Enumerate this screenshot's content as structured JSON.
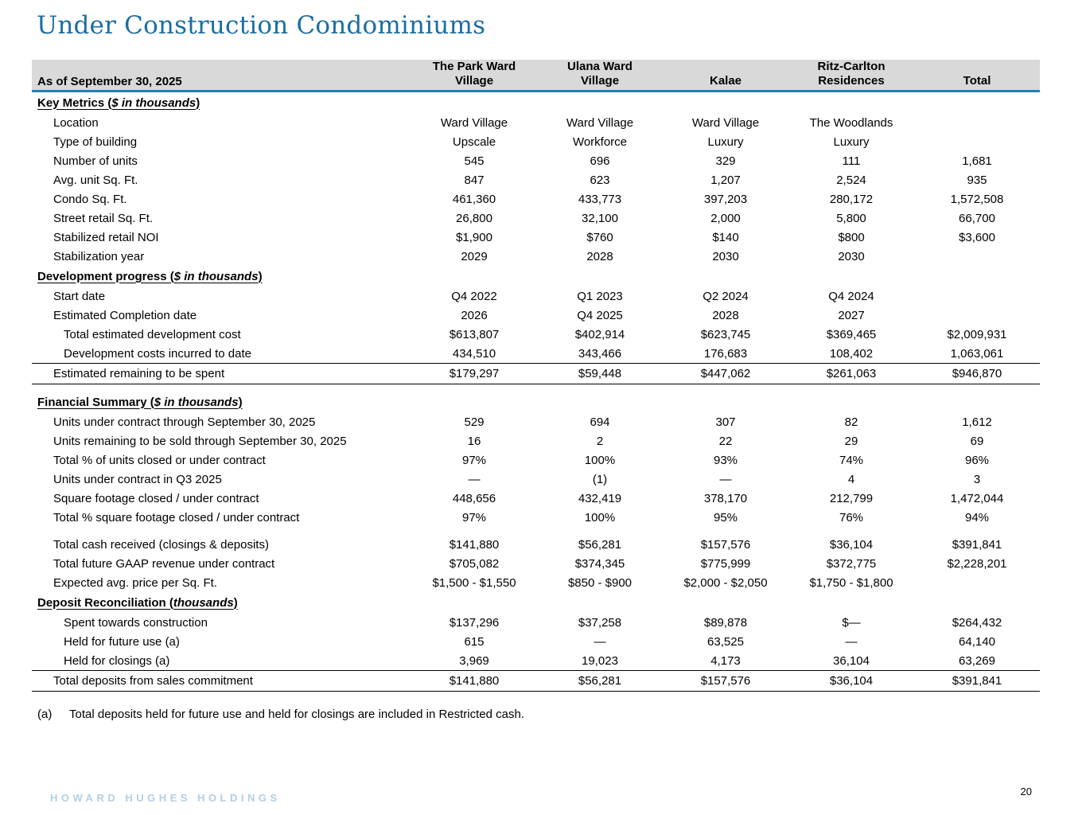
{
  "page": {
    "title": "Under Construction Condominiums",
    "page_number": "20"
  },
  "footer": {
    "brand": "HOWARD HUGHES HOLDINGS"
  },
  "footnote": {
    "marker": "(a)",
    "text": "Total deposits held for future use and held for closings are included in Restricted cash."
  },
  "colors": {
    "title_blue": "#1b6da2",
    "rule_blue": "#2180ba",
    "header_gray": "#d9d9d9",
    "brand_blue": "#b2cfe4"
  },
  "table": {
    "corner_label": "As of September 30, 2025",
    "columns": [
      "The Park Ward Village",
      "Ulana Ward Village",
      "Kalae",
      "Ritz-Carlton Residences",
      "Total"
    ],
    "sections": [
      {
        "name": "key-metrics",
        "heading": {
          "pre": "Key Metrics (",
          "italic": "$ in thousands",
          "post": ")"
        },
        "rows": [
          {
            "label": "Location",
            "indent": 1,
            "values": [
              "Ward Village",
              "Ward Village",
              "Ward Village",
              "The Woodlands",
              ""
            ]
          },
          {
            "label": "Type of building",
            "indent": 1,
            "values": [
              "Upscale",
              "Workforce",
              "Luxury",
              "Luxury",
              ""
            ]
          },
          {
            "label": "Number of units",
            "indent": 1,
            "values": [
              "545",
              "696",
              "329",
              "111",
              "1,681"
            ]
          },
          {
            "label": "Avg. unit Sq. Ft.",
            "indent": 1,
            "values": [
              "847",
              "623",
              "1,207",
              "2,524",
              "935"
            ]
          },
          {
            "label": "Condo Sq. Ft.",
            "indent": 1,
            "values": [
              "461,360",
              "433,773",
              "397,203",
              "280,172",
              "1,572,508"
            ]
          },
          {
            "label": "Street retail Sq. Ft.",
            "indent": 1,
            "values": [
              "26,800",
              "32,100",
              "2,000",
              "5,800",
              "66,700"
            ]
          },
          {
            "label": "Stabilized retail NOI",
            "indent": 1,
            "values": [
              "$1,900",
              "$760",
              "$140",
              "$800",
              "$3,600"
            ]
          },
          {
            "label": "Stabilization year",
            "indent": 1,
            "values": [
              "2029",
              "2028",
              "2030",
              "2030",
              ""
            ]
          }
        ]
      },
      {
        "name": "development-progress",
        "heading": {
          "pre": "Development progress (",
          "italic": "$ in thousands",
          "post": ")"
        },
        "rows": [
          {
            "label": "Start date",
            "indent": 1,
            "values": [
              "Q4 2022",
              "Q1 2023",
              "Q2 2024",
              "Q4 2024",
              ""
            ]
          },
          {
            "label": "Estimated Completion date",
            "indent": 1,
            "values": [
              "2026",
              "Q4 2025",
              "2028",
              "2027",
              ""
            ]
          },
          {
            "label": "Total estimated development cost",
            "indent": 2,
            "values": [
              "$613,807",
              "$402,914",
              "$623,745",
              "$369,465",
              "$2,009,931"
            ]
          },
          {
            "label": "Development costs incurred to date",
            "indent": 2,
            "values": [
              "434,510",
              "343,466",
              "176,683",
              "108,402",
              "1,063,061"
            ]
          },
          {
            "label": "Estimated remaining to be spent",
            "indent": 1,
            "total": true,
            "values": [
              "$179,297",
              "$59,448",
              "$447,062",
              "$261,063",
              "$946,870"
            ]
          }
        ]
      },
      {
        "name": "financial-summary",
        "spacer_before": true,
        "heading": {
          "pre": "Financial Summary (",
          "italic": "$ in thousands",
          "post": ")"
        },
        "rows": [
          {
            "label": "Units under contract through September 30, 2025",
            "indent": 1,
            "values": [
              "529",
              "694",
              "307",
              "82",
              "1,612"
            ]
          },
          {
            "label": "Units remaining to be sold through September 30, 2025",
            "indent": 1,
            "values": [
              "16",
              "2",
              "22",
              "29",
              "69"
            ]
          },
          {
            "label": "Total % of units closed or under contract",
            "indent": 1,
            "values": [
              "97%",
              "100%",
              "93%",
              "74%",
              "96%"
            ]
          },
          {
            "label": "Units under contract in Q3 2025",
            "indent": 1,
            "values": [
              "—",
              "(1)",
              "—",
              "4",
              "3"
            ]
          },
          {
            "label": "Square footage closed / under contract",
            "indent": 1,
            "values": [
              "448,656",
              "432,419",
              "378,170",
              "212,799",
              "1,472,044"
            ]
          },
          {
            "label": "Total % square footage closed / under contract",
            "indent": 1,
            "values": [
              "97%",
              "100%",
              "95%",
              "76%",
              "94%"
            ]
          },
          {
            "label": "Total cash received (closings & deposits)",
            "indent": 1,
            "spacer_before": true,
            "values": [
              "$141,880",
              "$56,281",
              "$157,576",
              "$36,104",
              "$391,841"
            ]
          },
          {
            "label": "Total future GAAP revenue under contract",
            "indent": 1,
            "values": [
              "$705,082",
              "$374,345",
              "$775,999",
              "$372,775",
              "$2,228,201"
            ]
          },
          {
            "label": "Expected avg. price per Sq. Ft.",
            "indent": 1,
            "values": [
              "$1,500 - $1,550",
              "$850 - $900",
              "$2,000 - $2,050",
              "$1,750 - $1,800",
              ""
            ]
          }
        ]
      },
      {
        "name": "deposit-reconciliation",
        "heading": {
          "pre": "Deposit Reconciliation (",
          "italic": "thousands",
          "post": ")"
        },
        "rows": [
          {
            "label": "Spent towards construction",
            "indent": 2,
            "values": [
              "$137,296",
              "$37,258",
              "$89,878",
              "$—",
              "$264,432"
            ]
          },
          {
            "label": "Held for future use (a)",
            "indent": 2,
            "values": [
              "615",
              "—",
              "63,525",
              "—",
              "64,140"
            ]
          },
          {
            "label": "Held for closings (a)",
            "indent": 2,
            "values": [
              "3,969",
              "19,023",
              "4,173",
              "36,104",
              "63,269"
            ]
          },
          {
            "label": "Total deposits from sales commitment",
            "indent": 1,
            "total": true,
            "values": [
              "$141,880",
              "$56,281",
              "$157,576",
              "$36,104",
              "$391,841"
            ]
          }
        ]
      }
    ]
  }
}
